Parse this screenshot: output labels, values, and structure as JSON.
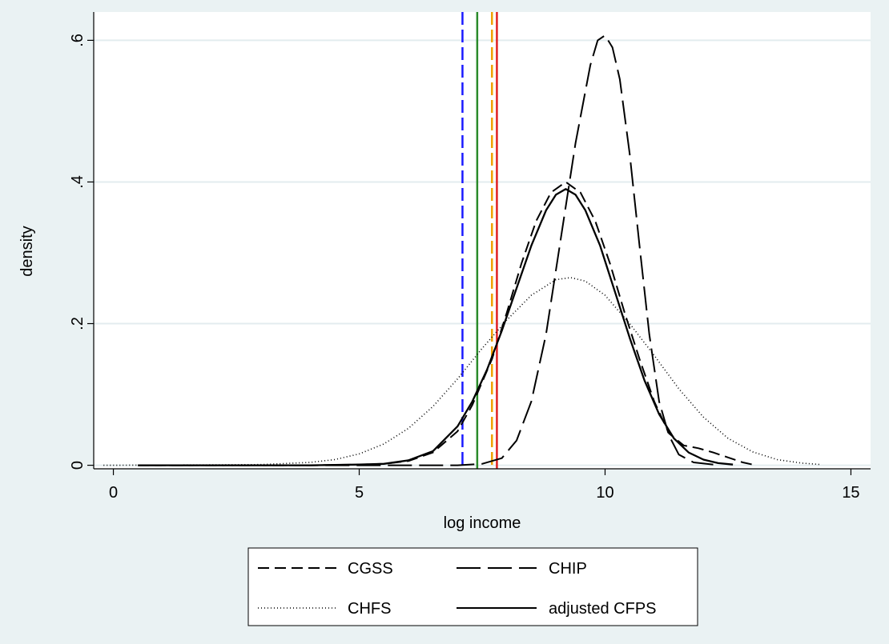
{
  "chart_data": {
    "type": "line",
    "xlabel": "log income",
    "ylabel": "density",
    "xlim": [
      -0.4,
      15.4
    ],
    "ylim": [
      -0.005,
      0.64
    ],
    "x_ticks": [
      {
        "value": 0,
        "label": "0"
      },
      {
        "value": 5,
        "label": "5"
      },
      {
        "value": 10,
        "label": "10"
      },
      {
        "value": 15,
        "label": "15"
      }
    ],
    "y_ticks": [
      {
        "value": 0,
        "label": "0"
      },
      {
        "value": 0.2,
        "label": ".2"
      },
      {
        "value": 0.4,
        "label": ".4"
      },
      {
        "value": 0.6,
        "label": ".6"
      }
    ],
    "grid": "horizontal",
    "legend": "bottom, outside plot area, two columns",
    "series": [
      {
        "name": "CGSS",
        "style": "short-dash",
        "color": "#000000",
        "x": [
          0.5,
          4.0,
          5.0,
          5.5,
          6.0,
          6.5,
          7.0,
          7.3,
          7.7,
          8.0,
          8.3,
          8.6,
          8.9,
          9.2,
          9.5,
          9.8,
          10.1,
          10.4,
          10.7,
          11.0,
          11.3,
          11.6,
          11.9,
          12.2,
          12.5,
          12.8,
          13.0
        ],
        "y": [
          0,
          0,
          0.001,
          0.002,
          0.006,
          0.018,
          0.048,
          0.085,
          0.15,
          0.215,
          0.285,
          0.345,
          0.385,
          0.4,
          0.385,
          0.345,
          0.285,
          0.215,
          0.15,
          0.09,
          0.045,
          0.028,
          0.024,
          0.018,
          0.011,
          0.004,
          0.001
        ]
      },
      {
        "name": "CHIP",
        "style": "long-dash",
        "color": "#000000",
        "x": [
          0.5,
          7.0,
          7.5,
          7.9,
          8.2,
          8.5,
          8.8,
          9.1,
          9.4,
          9.7,
          9.85,
          10.0,
          10.15,
          10.3,
          10.5,
          10.7,
          10.9,
          11.1,
          11.3,
          11.5,
          11.8,
          12.2
        ],
        "y": [
          0,
          0,
          0.002,
          0.01,
          0.035,
          0.09,
          0.185,
          0.32,
          0.455,
          0.565,
          0.6,
          0.607,
          0.59,
          0.545,
          0.44,
          0.31,
          0.185,
          0.09,
          0.042,
          0.015,
          0.004,
          0.001
        ]
      },
      {
        "name": "CHFS",
        "style": "dotted",
        "color": "#000000",
        "x": [
          -0.2,
          2.0,
          3.0,
          4.0,
          4.5,
          5.0,
          5.5,
          6.0,
          6.5,
          7.0,
          7.5,
          8.0,
          8.5,
          9.0,
          9.3,
          9.6,
          10.0,
          10.5,
          11.0,
          11.5,
          12.0,
          12.5,
          13.0,
          13.5,
          14.0,
          14.4
        ],
        "y": [
          0,
          0.0005,
          0.001,
          0.004,
          0.008,
          0.016,
          0.03,
          0.052,
          0.083,
          0.122,
          0.165,
          0.205,
          0.24,
          0.262,
          0.265,
          0.26,
          0.24,
          0.2,
          0.155,
          0.108,
          0.068,
          0.038,
          0.019,
          0.008,
          0.003,
          0.001
        ]
      },
      {
        "name": "adjusted CFPS",
        "style": "solid",
        "color": "#000000",
        "x": [
          0.5,
          4.0,
          5.0,
          5.5,
          6.0,
          6.5,
          7.0,
          7.3,
          7.6,
          7.9,
          8.2,
          8.5,
          8.8,
          9.0,
          9.2,
          9.4,
          9.6,
          9.9,
          10.2,
          10.5,
          10.8,
          11.1,
          11.4,
          11.7,
          12.0,
          12.3,
          12.6
        ],
        "y": [
          0,
          0,
          0.001,
          0.002,
          0.007,
          0.02,
          0.055,
          0.09,
          0.135,
          0.19,
          0.25,
          0.31,
          0.36,
          0.382,
          0.39,
          0.382,
          0.36,
          0.31,
          0.245,
          0.18,
          0.12,
          0.072,
          0.038,
          0.018,
          0.008,
          0.003,
          0.001
        ]
      }
    ],
    "vertical_lines": [
      {
        "x": 7.1,
        "color": "#1a1aff",
        "style": "dashed"
      },
      {
        "x": 7.4,
        "color": "#2a8a2a",
        "style": "solid"
      },
      {
        "x": 7.7,
        "color": "#f0a000",
        "style": "dashed"
      },
      {
        "x": 7.8,
        "color": "#e02020",
        "style": "solid"
      }
    ]
  }
}
